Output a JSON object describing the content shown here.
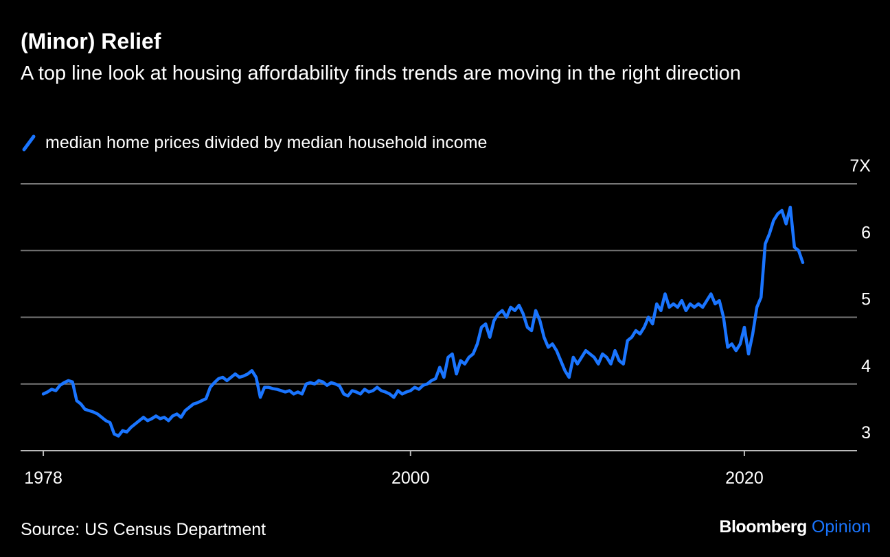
{
  "chart_data": {
    "type": "line",
    "title": "(Minor) Relief",
    "subtitle": "A top line look at housing affordability finds trends are moving in the right direction",
    "source": "Source: US Census Department",
    "brand": "Bloomberg",
    "brand_suffix": "Opinion",
    "x": [
      1978,
      1978.25,
      1978.5,
      1978.75,
      1979,
      1979.25,
      1979.5,
      1979.75,
      1980,
      1980.25,
      1980.5,
      1980.75,
      1981,
      1981.25,
      1981.5,
      1981.75,
      1982,
      1982.25,
      1982.5,
      1982.75,
      1983,
      1983.25,
      1983.5,
      1983.75,
      1984,
      1984.25,
      1984.5,
      1984.75,
      1985,
      1985.25,
      1985.5,
      1985.75,
      1986,
      1986.25,
      1986.5,
      1986.75,
      1987,
      1987.25,
      1987.5,
      1987.75,
      1988,
      1988.25,
      1988.5,
      1988.75,
      1989,
      1989.25,
      1989.5,
      1989.75,
      1990,
      1990.25,
      1990.5,
      1990.75,
      1991,
      1991.25,
      1991.5,
      1991.75,
      1992,
      1992.25,
      1992.5,
      1992.75,
      1993,
      1993.25,
      1993.5,
      1993.75,
      1994,
      1994.25,
      1994.5,
      1994.75,
      1995,
      1995.25,
      1995.5,
      1995.75,
      1996,
      1996.25,
      1996.5,
      1996.75,
      1997,
      1997.25,
      1997.5,
      1997.75,
      1998,
      1998.25,
      1998.5,
      1998.75,
      1999,
      1999.25,
      1999.5,
      1999.75,
      2000,
      2000.25,
      2000.5,
      2000.75,
      2001,
      2001.25,
      2001.5,
      2001.75,
      2002,
      2002.25,
      2002.5,
      2002.75,
      2003,
      2003.25,
      2003.5,
      2003.75,
      2004,
      2004.25,
      2004.5,
      2004.75,
      2005,
      2005.25,
      2005.5,
      2005.75,
      2006,
      2006.25,
      2006.5,
      2006.75,
      2007,
      2007.25,
      2007.5,
      2007.75,
      2008,
      2008.25,
      2008.5,
      2008.75,
      2009,
      2009.25,
      2009.5,
      2009.75,
      2010,
      2010.25,
      2010.5,
      2010.75,
      2011,
      2011.25,
      2011.5,
      2011.75,
      2012,
      2012.25,
      2012.5,
      2012.75,
      2013,
      2013.25,
      2013.5,
      2013.75,
      2014,
      2014.25,
      2014.5,
      2014.75,
      2015,
      2015.25,
      2015.5,
      2015.75,
      2016,
      2016.25,
      2016.5,
      2016.75,
      2017,
      2017.25,
      2017.5,
      2017.75,
      2018,
      2018.25,
      2018.5,
      2018.75,
      2019,
      2019.25,
      2019.5,
      2019.75,
      2020,
      2020.25,
      2020.5,
      2020.75,
      2021,
      2021.25,
      2021.5,
      2021.75,
      2022,
      2022.25,
      2022.5,
      2022.75,
      2023,
      2023.25,
      2023.5
    ],
    "series": [
      {
        "name": "median home prices divided by median household income",
        "color": "#1a75ff",
        "values": [
          3.85,
          3.88,
          3.92,
          3.9,
          3.98,
          4.02,
          4.05,
          4.03,
          3.75,
          3.7,
          3.62,
          3.6,
          3.58,
          3.55,
          3.5,
          3.45,
          3.42,
          3.25,
          3.22,
          3.3,
          3.28,
          3.35,
          3.4,
          3.45,
          3.5,
          3.45,
          3.48,
          3.52,
          3.48,
          3.5,
          3.45,
          3.52,
          3.55,
          3.5,
          3.6,
          3.65,
          3.7,
          3.72,
          3.75,
          3.78,
          3.95,
          4.02,
          4.08,
          4.1,
          4.05,
          4.1,
          4.15,
          4.1,
          4.12,
          4.15,
          4.2,
          4.1,
          3.8,
          3.95,
          3.95,
          3.93,
          3.92,
          3.9,
          3.88,
          3.9,
          3.85,
          3.88,
          3.85,
          4.0,
          4.02,
          4.0,
          4.05,
          4.03,
          3.98,
          4.02,
          4.0,
          3.97,
          3.85,
          3.82,
          3.9,
          3.88,
          3.85,
          3.92,
          3.88,
          3.9,
          3.95,
          3.9,
          3.88,
          3.85,
          3.8,
          3.9,
          3.85,
          3.88,
          3.9,
          3.95,
          3.92,
          3.98,
          4.0,
          4.05,
          4.08,
          4.25,
          4.1,
          4.4,
          4.45,
          4.15,
          4.35,
          4.3,
          4.4,
          4.45,
          4.6,
          4.85,
          4.9,
          4.7,
          4.95,
          5.05,
          5.1,
          5.0,
          5.15,
          5.1,
          5.18,
          5.05,
          4.85,
          4.8,
          5.1,
          4.95,
          4.7,
          4.55,
          4.6,
          4.5,
          4.35,
          4.2,
          4.1,
          4.4,
          4.3,
          4.4,
          4.5,
          4.45,
          4.4,
          4.3,
          4.45,
          4.4,
          4.3,
          4.5,
          4.35,
          4.3,
          4.65,
          4.7,
          4.8,
          4.75,
          4.85,
          5.0,
          4.9,
          5.2,
          5.1,
          5.35,
          5.15,
          5.2,
          5.15,
          5.25,
          5.1,
          5.2,
          5.15,
          5.2,
          5.15,
          5.25,
          5.35,
          5.2,
          5.25,
          5.0,
          4.55,
          4.6,
          4.5,
          4.6,
          4.85,
          4.45,
          4.75,
          5.15,
          5.3,
          6.1,
          6.25,
          6.45,
          6.55,
          6.6,
          6.4,
          6.65,
          6.05,
          6.0,
          5.82
        ]
      }
    ],
    "xlim": [
      1976.64,
      2026.75
    ],
    "xticks": [
      1978,
      2000,
      2020
    ],
    "ylim": [
      3,
      7
    ],
    "yticks": [
      3,
      4,
      5,
      6,
      {
        "value": 7,
        "label": "7X"
      }
    ],
    "grid": true
  }
}
